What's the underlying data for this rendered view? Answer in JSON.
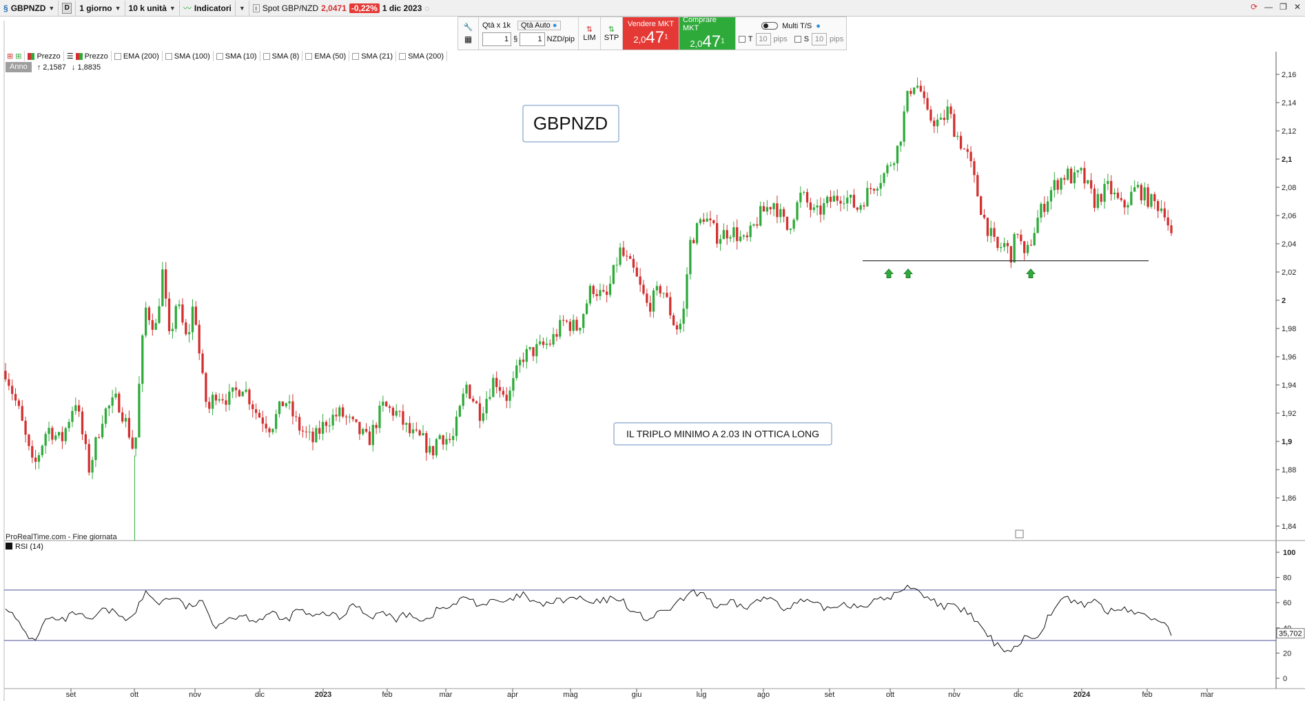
{
  "toolbar": {
    "symbol": "GBPNZD",
    "d_label": "D",
    "timeframe": "1 giorno",
    "units": "10 k unità",
    "indicators": "Indicatori",
    "spot_label": "Spot GBP/NZD",
    "spot_price": "2,0471",
    "change": "-0,22%",
    "date": "1 dic 2023"
  },
  "order_panel": {
    "qty_label": "Qtà  x 1k",
    "qty_auto": "Qtà Auto",
    "qty_value": "1",
    "pip_value": "1",
    "pip_unit": "NZD/pip",
    "lim": "LIM",
    "stp": "STP",
    "sell_label": "Vendere MKT",
    "sell_small": "2,0",
    "sell_big": "47",
    "sell_sup": "1",
    "buy_label": "Comprare MKT",
    "buy_small": "2,0",
    "buy_big": "47",
    "buy_sup": "1",
    "multi": "Multi T/S",
    "t_label": "T",
    "s_label": "S",
    "pips_value": "10",
    "pips_unit": "pips"
  },
  "legend": {
    "items": [
      "Prezzo",
      "Prezzo",
      "EMA (200)",
      "SMA (100)",
      "SMA (10)",
      "SMA (8)",
      "EMA (50)",
      "SMA (21)",
      "SMA (200)"
    ],
    "period": "Anno",
    "high": "2,1587",
    "low": "1,8835"
  },
  "chart_data": {
    "type": "candlestick",
    "title": "GBPNZD",
    "annotation": "IL TRIPLO MINIMO A 2.03 IN OTTICA LONG",
    "source": "ProRealTime.com - Fine giornata",
    "ylim": [
      1.83,
      2.17
    ],
    "y_ticks": [
      "2,16",
      "2,14",
      "2,12",
      "2,1",
      "2,08",
      "2,06",
      "2,04",
      "2,02",
      "2",
      "1,98",
      "1,96",
      "1,94",
      "1,92",
      "1,9",
      "1,88",
      "1,86",
      "1,84"
    ],
    "y_tick_values": [
      2.16,
      2.14,
      2.12,
      2.1,
      2.08,
      2.06,
      2.04,
      2.02,
      2.0,
      1.98,
      1.96,
      1.94,
      1.92,
      1.9,
      1.88,
      1.86,
      1.84
    ],
    "x_ticks": [
      "set",
      "ott",
      "nov",
      "dic",
      "2023",
      "feb",
      "mar",
      "apr",
      "mag",
      "giu",
      "lug",
      "ago",
      "set",
      "ott",
      "nov",
      "dic",
      "2024",
      "feb",
      "mar"
    ],
    "support_level": 2.028,
    "price_path": [
      [
        0,
        1.95
      ],
      [
        0.02,
        1.92
      ],
      [
        0.04,
        1.88
      ],
      [
        0.06,
        1.91
      ],
      [
        0.08,
        1.9
      ],
      [
        0.1,
        1.93
      ],
      [
        0.12,
        1.88
      ],
      [
        0.14,
        1.92
      ],
      [
        0.16,
        1.93
      ],
      [
        0.175,
        1.91
      ],
      [
        0.185,
        1.89
      ],
      [
        0.19,
        1.93
      ],
      [
        0.2,
        1.995
      ],
      [
        0.215,
        1.98
      ],
      [
        0.225,
        2.02
      ],
      [
        0.235,
        1.97
      ],
      [
        0.245,
        2.0
      ],
      [
        0.26,
        1.97
      ],
      [
        0.27,
        2.0
      ],
      [
        0.28,
        1.95
      ],
      [
        0.29,
        1.92
      ],
      [
        0.3,
        1.935
      ],
      [
        0.32,
        1.93
      ],
      [
        0.34,
        1.94
      ],
      [
        0.36,
        1.92
      ],
      [
        0.38,
        1.91
      ],
      [
        0.4,
        1.93
      ],
      [
        0.42,
        1.91
      ],
      [
        0.44,
        1.9
      ],
      [
        0.46,
        1.915
      ],
      [
        0.48,
        1.92
      ],
      [
        0.5,
        1.91
      ],
      [
        0.52,
        1.9
      ],
      [
        0.54,
        1.925
      ],
      [
        0.56,
        1.92
      ],
      [
        0.58,
        1.905
      ],
      [
        0.6,
        1.9
      ],
      [
        0.61,
        1.89
      ],
      [
        0.62,
        1.905
      ],
      [
        0.64,
        1.9
      ],
      [
        0.66,
        1.94
      ],
      [
        0.68,
        1.92
      ],
      [
        0.7,
        1.945
      ],
      [
        0.72,
        1.93
      ],
      [
        0.74,
        1.96
      ],
      [
        0.76,
        1.965
      ],
      [
        0.78,
        1.97
      ],
      [
        0.8,
        1.985
      ],
      [
        0.82,
        1.98
      ],
      [
        0.84,
        2.01
      ],
      [
        0.86,
        2.0
      ],
      [
        0.88,
        2.035
      ],
      [
        0.9,
        2.02
      ],
      [
        0.92,
        1.995
      ],
      [
        0.94,
        2.01
      ],
      [
        0.96,
        1.98
      ],
      [
        0.97,
        1.985
      ],
      [
        0.98,
        2.04
      ],
      [
        1.0,
        2.06
      ],
      [
        1.02,
        2.045
      ],
      [
        1.04,
        2.05
      ],
      [
        1.06,
        2.04
      ],
      [
        1.08,
        2.06
      ],
      [
        1.1,
        2.07
      ],
      [
        1.12,
        2.05
      ],
      [
        1.14,
        2.075
      ],
      [
        1.16,
        2.06
      ],
      [
        1.18,
        2.07
      ],
      [
        1.2,
        2.075
      ],
      [
        1.22,
        2.065
      ],
      [
        1.24,
        2.08
      ],
      [
        1.26,
        2.09
      ],
      [
        1.28,
        2.11
      ],
      [
        1.29,
        2.14
      ],
      [
        1.3,
        2.155
      ],
      [
        1.31,
        2.15
      ],
      [
        1.32,
        2.13
      ],
      [
        1.34,
        2.125
      ],
      [
        1.35,
        2.135
      ],
      [
        1.36,
        2.12
      ],
      [
        1.38,
        2.1
      ],
      [
        1.4,
        2.06
      ],
      [
        1.42,
        2.035
      ],
      [
        1.43,
        2.04
      ],
      [
        1.44,
        2.032
      ],
      [
        1.45,
        2.05
      ],
      [
        1.46,
        2.028
      ],
      [
        1.48,
        2.06
      ],
      [
        1.5,
        2.08
      ],
      [
        1.52,
        2.09
      ],
      [
        1.53,
        2.085
      ],
      [
        1.54,
        2.09
      ],
      [
        1.56,
        2.07
      ],
      [
        1.58,
        2.08
      ],
      [
        1.6,
        2.065
      ],
      [
        1.62,
        2.08
      ],
      [
        1.64,
        2.07
      ],
      [
        1.66,
        2.065
      ],
      [
        1.67,
        2.045
      ]
    ],
    "rsi": {
      "label": "RSI (14)",
      "ylim": [
        0,
        100
      ],
      "y_ticks": [
        "100",
        "80",
        "60",
        "40",
        "20",
        "0"
      ],
      "y_tick_values": [
        100,
        80,
        60,
        40,
        20,
        0
      ],
      "levels": [
        70,
        30
      ],
      "last_value": "35,702",
      "values": [
        [
          0,
          58
        ],
        [
          0.02,
          42
        ],
        [
          0.04,
          29
        ],
        [
          0.06,
          48
        ],
        [
          0.08,
          45
        ],
        [
          0.1,
          52
        ],
        [
          0.12,
          45
        ],
        [
          0.14,
          54
        ],
        [
          0.16,
          52
        ],
        [
          0.18,
          46
        ],
        [
          0.2,
          68
        ],
        [
          0.22,
          60
        ],
        [
          0.24,
          65
        ],
        [
          0.26,
          56
        ],
        [
          0.28,
          61
        ],
        [
          0.3,
          42
        ],
        [
          0.32,
          48
        ],
        [
          0.34,
          50
        ],
        [
          0.36,
          46
        ],
        [
          0.38,
          52
        ],
        [
          0.4,
          45
        ],
        [
          0.42,
          55
        ],
        [
          0.44,
          48
        ],
        [
          0.46,
          52
        ],
        [
          0.48,
          47
        ],
        [
          0.5,
          60
        ],
        [
          0.52,
          49
        ],
        [
          0.54,
          52
        ],
        [
          0.56,
          47
        ],
        [
          0.58,
          52
        ],
        [
          0.6,
          45
        ],
        [
          0.62,
          55
        ],
        [
          0.64,
          57
        ],
        [
          0.66,
          65
        ],
        [
          0.68,
          58
        ],
        [
          0.7,
          61
        ],
        [
          0.72,
          60
        ],
        [
          0.74,
          67
        ],
        [
          0.76,
          58
        ],
        [
          0.78,
          60
        ],
        [
          0.8,
          62
        ],
        [
          0.82,
          64
        ],
        [
          0.84,
          59
        ],
        [
          0.86,
          62
        ],
        [
          0.88,
          64
        ],
        [
          0.9,
          52
        ],
        [
          0.92,
          47
        ],
        [
          0.94,
          52
        ],
        [
          0.96,
          58
        ],
        [
          0.98,
          67
        ],
        [
          1.0,
          68
        ],
        [
          1.02,
          55
        ],
        [
          1.04,
          60
        ],
        [
          1.06,
          56
        ],
        [
          1.08,
          62
        ],
        [
          1.1,
          64
        ],
        [
          1.12,
          54
        ],
        [
          1.14,
          62
        ],
        [
          1.16,
          58
        ],
        [
          1.18,
          55
        ],
        [
          1.2,
          60
        ],
        [
          1.22,
          57
        ],
        [
          1.24,
          60
        ],
        [
          1.26,
          63
        ],
        [
          1.28,
          68
        ],
        [
          1.3,
          74
        ],
        [
          1.32,
          64
        ],
        [
          1.34,
          58
        ],
        [
          1.36,
          56
        ],
        [
          1.38,
          52
        ],
        [
          1.4,
          38
        ],
        [
          1.42,
          26
        ],
        [
          1.44,
          22
        ],
        [
          1.46,
          32
        ],
        [
          1.48,
          35
        ],
        [
          1.5,
          55
        ],
        [
          1.52,
          64
        ],
        [
          1.54,
          58
        ],
        [
          1.56,
          62
        ],
        [
          1.58,
          52
        ],
        [
          1.6,
          56
        ],
        [
          1.62,
          52
        ],
        [
          1.64,
          48
        ],
        [
          1.66,
          45
        ],
        [
          1.67,
          36
        ]
      ]
    }
  }
}
